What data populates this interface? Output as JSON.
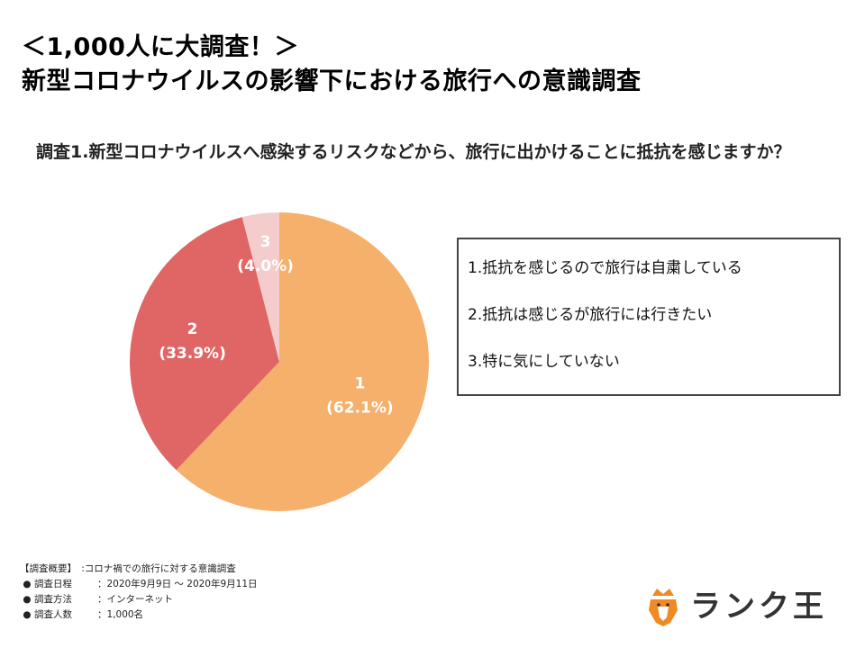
{
  "header": {
    "title_line1": "＜1,000人に大調査！＞",
    "title_line2": "新型コロナウイルスの影響下における旅行への意識調査"
  },
  "question": "調査1.新型コロナウイルスへ感染するリスクなどから、旅行に出かけることに抵抗を感じますか？",
  "chart_data": {
    "type": "pie",
    "slices": [
      {
        "label": "1",
        "value": 62.1,
        "display": "(62.1%)",
        "color": "#f5b06b"
      },
      {
        "label": "2",
        "value": 33.9,
        "display": "(33.9%)",
        "color": "#e06666"
      },
      {
        "label": "3",
        "value": 4.0,
        "display": "(4.0%)",
        "color": "#f4cccc"
      }
    ]
  },
  "legend": {
    "items": [
      "1.抵抗を感じるので旅行は自粛している",
      "2.抵抗は感じるが旅行には行きたい",
      "3.特に気にしていない"
    ]
  },
  "survey": {
    "heading": "【調査概要】　:コロナ禍での旅行に対する意識調査",
    "rows": [
      {
        "label": "調査日程",
        "value": "：2020年9月9日 〜 2020年9月11日"
      },
      {
        "label": "調査方法",
        "value": "：インターネット"
      },
      {
        "label": "調査人数",
        "value": "：1,000名"
      }
    ]
  },
  "logo": {
    "text": "ランク王",
    "icon": "crowned-lion-icon",
    "colors": {
      "orange": "#f08a24",
      "dark": "#333333"
    }
  }
}
